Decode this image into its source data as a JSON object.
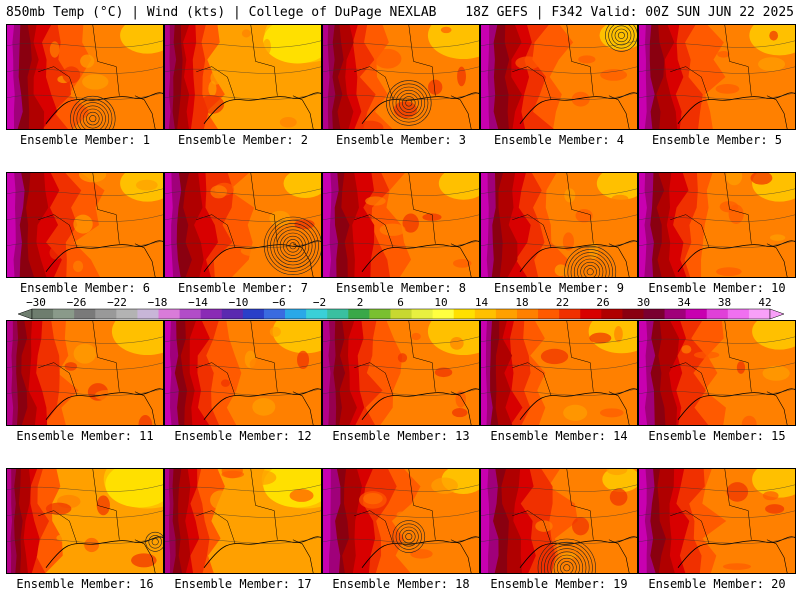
{
  "header": {
    "left": "850mb Temp (°C) | Wind (kts) | College of DuPage NEXLAB",
    "right": "18Z GEFS | F342 Valid: 00Z SUN JUN 22 2025"
  },
  "members": [
    "Ensemble Member: 1",
    "Ensemble Member: 2",
    "Ensemble Member: 3",
    "Ensemble Member: 4",
    "Ensemble Member: 5",
    "Ensemble Member: 6",
    "Ensemble Member: 7",
    "Ensemble Member: 8",
    "Ensemble Member: 9",
    "Ensemble Member: 10",
    "Ensemble Member: 11",
    "Ensemble Member: 12",
    "Ensemble Member: 13",
    "Ensemble Member: 14",
    "Ensemble Member: 15",
    "Ensemble Member: 16",
    "Ensemble Member: 17",
    "Ensemble Member: 18",
    "Ensemble Member: 19",
    "Ensemble Member: 20"
  ],
  "colorbar": {
    "ticks": [
      "-30",
      "-26",
      "-22",
      "-18",
      "-14",
      "-10",
      "-6",
      "-2",
      "2",
      "6",
      "10",
      "14",
      "18",
      "22",
      "26",
      "30",
      "34",
      "38",
      "42"
    ],
    "colors": [
      "#6e7d6e",
      "#8a9a8a",
      "#7a7a7a",
      "#999999",
      "#b3b3b3",
      "#c8b6d8",
      "#d97bd9",
      "#b24cc8",
      "#8a2bb5",
      "#5a2ab0",
      "#2a3fc8",
      "#3a6be0",
      "#2aa8e8",
      "#3ad0d8",
      "#3ac0a0",
      "#3aa848",
      "#7ac030",
      "#c8d830",
      "#e8f040",
      "#ffff40",
      "#ffe000",
      "#ffc000",
      "#ffa000",
      "#ff8000",
      "#ff5a00",
      "#f03000",
      "#d80000",
      "#b00000",
      "#8a0010",
      "#7a0030",
      "#a0007a",
      "#c800b0",
      "#e040d8",
      "#f070f0",
      "#f8a0f8"
    ]
  },
  "panels": [
    {
      "heat": 0.7,
      "west": 0.85,
      "low": [
        0.55,
        0.9,
        7
      ]
    },
    {
      "heat": 0.45,
      "west": 0.6,
      "low": null
    },
    {
      "heat": 0.55,
      "west": 0.7,
      "low": [
        0.55,
        0.75,
        7
      ]
    },
    {
      "heat": 0.8,
      "west": 0.95,
      "low": [
        0.9,
        0.1,
        5
      ]
    },
    {
      "heat": 0.65,
      "west": 0.85,
      "low": null
    },
    {
      "heat": 0.7,
      "west": 0.95,
      "low": null
    },
    {
      "heat": 0.8,
      "west": 0.9,
      "low": [
        0.82,
        0.7,
        9
      ]
    },
    {
      "heat": 0.75,
      "west": 0.9,
      "low": null
    },
    {
      "heat": 0.75,
      "west": 0.85,
      "low": [
        0.7,
        0.95,
        8
      ]
    },
    {
      "heat": 0.7,
      "west": 0.85,
      "low": null
    },
    {
      "heat": 0.55,
      "west": 0.7,
      "low": null
    },
    {
      "heat": 0.6,
      "west": 0.75,
      "low": null
    },
    {
      "heat": 0.55,
      "west": 0.8,
      "low": null
    },
    {
      "heat": 0.6,
      "west": 0.7,
      "low": null
    },
    {
      "heat": 0.7,
      "west": 0.9,
      "low": null
    },
    {
      "heat": 0.4,
      "west": 0.55,
      "low": [
        0.95,
        0.7,
        3
      ]
    },
    {
      "heat": 0.4,
      "west": 0.6,
      "low": null
    },
    {
      "heat": 0.8,
      "west": 0.95,
      "low": [
        0.55,
        0.65,
        5
      ]
    },
    {
      "heat": 0.85,
      "west": 0.95,
      "low": [
        0.55,
        0.95,
        9
      ]
    },
    {
      "heat": 0.7,
      "west": 0.9,
      "low": null
    }
  ]
}
